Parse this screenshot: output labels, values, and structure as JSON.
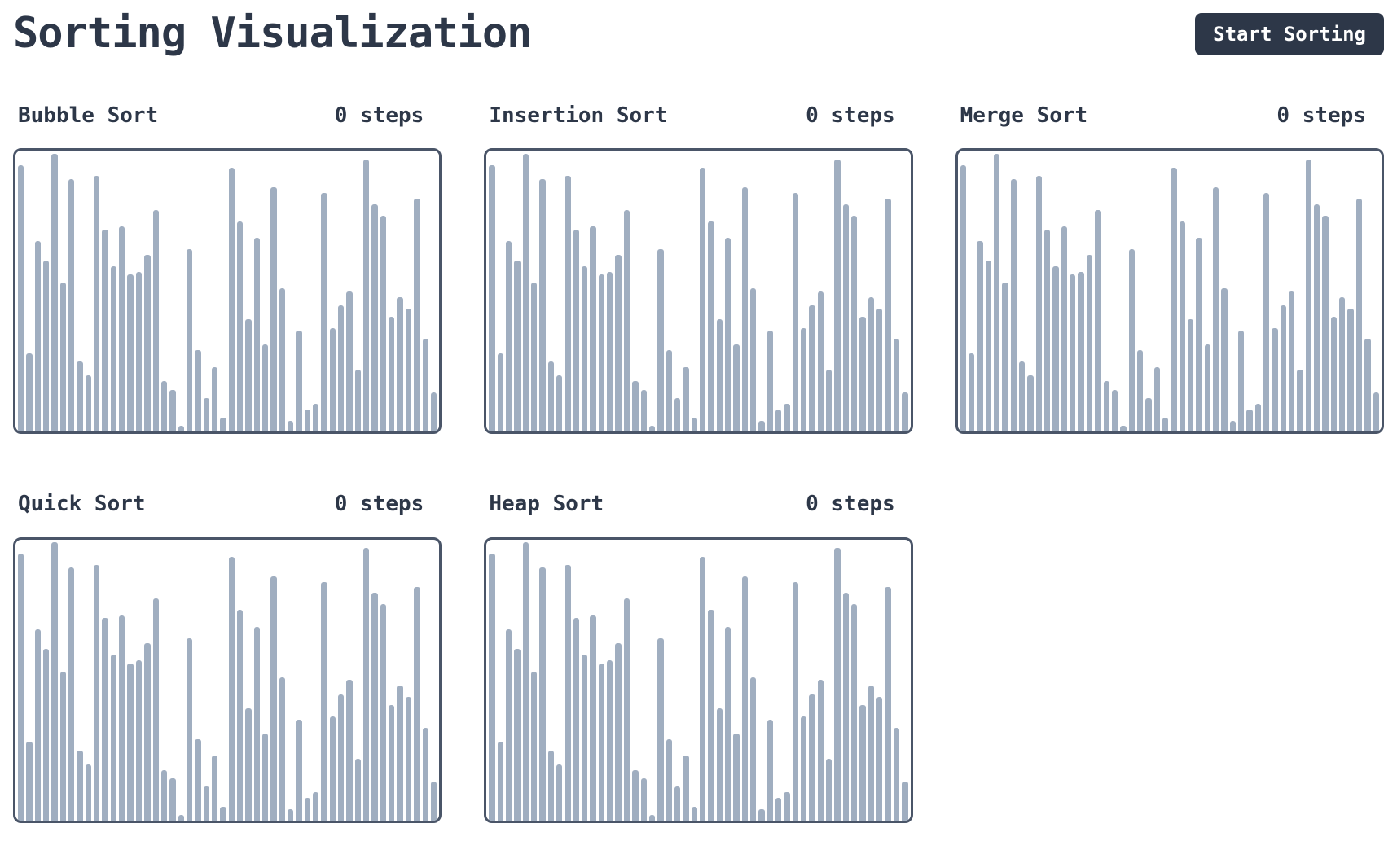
{
  "app": {
    "title": "Sorting Visualization"
  },
  "toolbar": {
    "start_button_label": "Start Sorting"
  },
  "colors": {
    "text": "#2d3748",
    "bar": "#a0aec0",
    "panel_border": "#4a5568",
    "button_bg": "#2d3748",
    "button_text": "#ffffff",
    "background": "#ffffff"
  },
  "chart_data": [
    {
      "type": "bar",
      "title": "Bubble Sort",
      "steps_label": "0 steps",
      "ylim": [
        0,
        100
      ],
      "grid": false,
      "values": [
        95,
        28,
        68,
        61,
        99,
        53,
        90,
        25,
        20,
        91,
        72,
        59,
        73,
        56,
        57,
        63,
        79,
        18,
        15,
        2,
        65,
        29,
        12,
        23,
        5,
        94,
        75,
        40,
        69,
        31,
        87,
        51,
        4,
        36,
        8,
        10,
        85,
        37,
        45,
        50,
        22,
        97,
        81,
        77,
        41,
        48,
        44,
        83,
        33,
        14
      ]
    },
    {
      "type": "bar",
      "title": "Insertion Sort",
      "steps_label": "0 steps",
      "ylim": [
        0,
        100
      ],
      "grid": false,
      "values": [
        95,
        28,
        68,
        61,
        99,
        53,
        90,
        25,
        20,
        91,
        72,
        59,
        73,
        56,
        57,
        63,
        79,
        18,
        15,
        2,
        65,
        29,
        12,
        23,
        5,
        94,
        75,
        40,
        69,
        31,
        87,
        51,
        4,
        36,
        8,
        10,
        85,
        37,
        45,
        50,
        22,
        97,
        81,
        77,
        41,
        48,
        44,
        83,
        33,
        14
      ]
    },
    {
      "type": "bar",
      "title": "Merge Sort",
      "steps_label": "0 steps",
      "ylim": [
        0,
        100
      ],
      "grid": false,
      "values": [
        95,
        28,
        68,
        61,
        99,
        53,
        90,
        25,
        20,
        91,
        72,
        59,
        73,
        56,
        57,
        63,
        79,
        18,
        15,
        2,
        65,
        29,
        12,
        23,
        5,
        94,
        75,
        40,
        69,
        31,
        87,
        51,
        4,
        36,
        8,
        10,
        85,
        37,
        45,
        50,
        22,
        97,
        81,
        77,
        41,
        48,
        44,
        83,
        33,
        14
      ]
    },
    {
      "type": "bar",
      "title": "Quick Sort",
      "steps_label": "0 steps",
      "ylim": [
        0,
        100
      ],
      "grid": false,
      "values": [
        95,
        28,
        68,
        61,
        99,
        53,
        90,
        25,
        20,
        91,
        72,
        59,
        73,
        56,
        57,
        63,
        79,
        18,
        15,
        2,
        65,
        29,
        12,
        23,
        5,
        94,
        75,
        40,
        69,
        31,
        87,
        51,
        4,
        36,
        8,
        10,
        85,
        37,
        45,
        50,
        22,
        97,
        81,
        77,
        41,
        48,
        44,
        83,
        33,
        14
      ]
    },
    {
      "type": "bar",
      "title": "Heap Sort",
      "steps_label": "0 steps",
      "ylim": [
        0,
        100
      ],
      "grid": false,
      "values": [
        95,
        28,
        68,
        61,
        99,
        53,
        90,
        25,
        20,
        91,
        72,
        59,
        73,
        56,
        57,
        63,
        79,
        18,
        15,
        2,
        65,
        29,
        12,
        23,
        5,
        94,
        75,
        40,
        69,
        31,
        87,
        51,
        4,
        36,
        8,
        10,
        85,
        37,
        45,
        50,
        22,
        97,
        81,
        77,
        41,
        48,
        44,
        83,
        33,
        14
      ]
    }
  ]
}
